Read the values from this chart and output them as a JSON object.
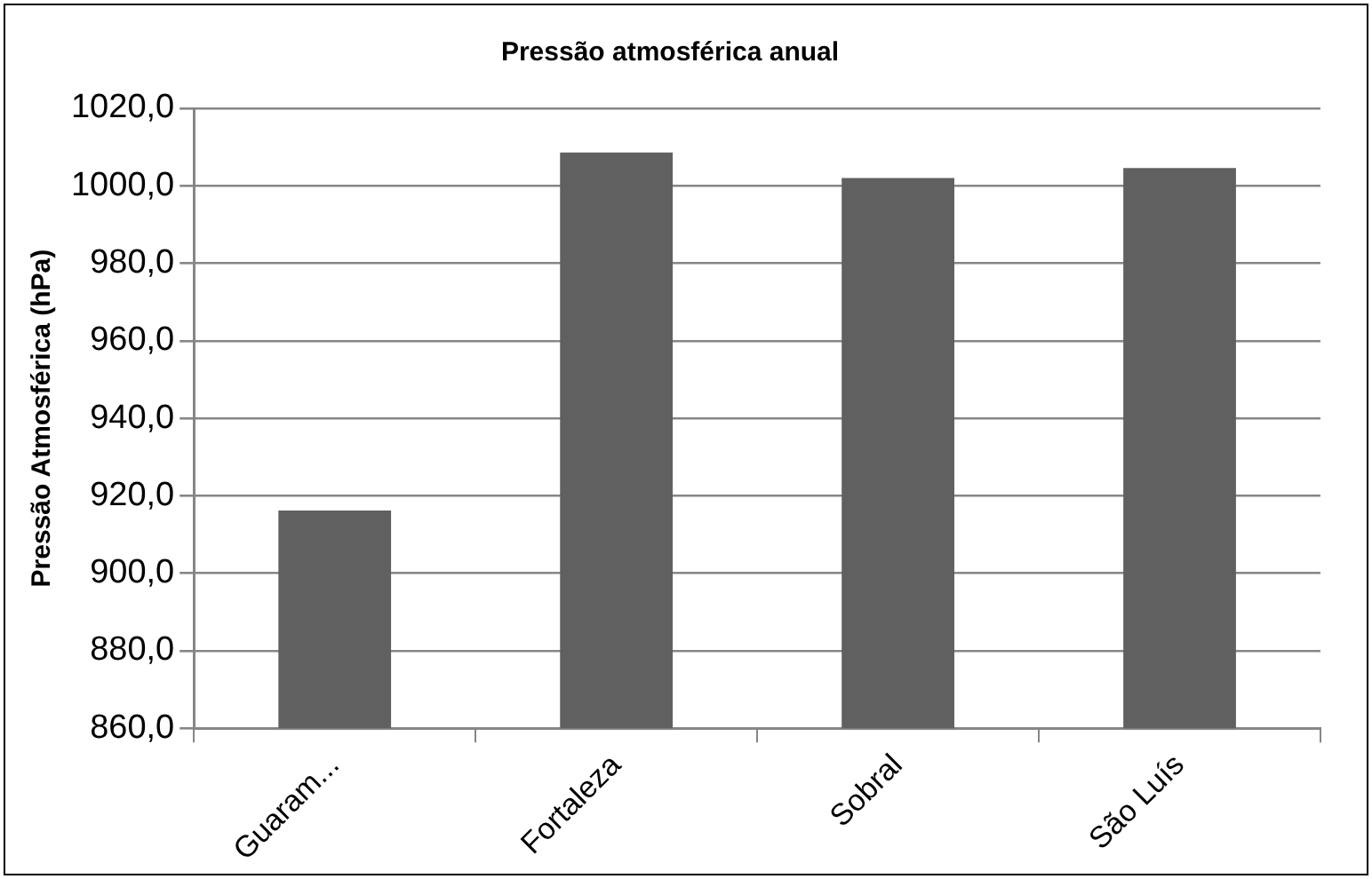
{
  "chart_data": {
    "type": "bar",
    "title": "Pressão atmosférica anual",
    "ylabel": "Pressão Atmosférica (hPa)",
    "categories": [
      "Guaram...",
      "Fortaleza",
      "Sobral",
      "São Luís"
    ],
    "values": [
      916.2,
      1008.6,
      1002.0,
      1004.6
    ],
    "color": "#606060",
    "ylim": [
      860,
      1020
    ],
    "yticks": [
      {
        "value": 860,
        "label": "860,0"
      },
      {
        "value": 880,
        "label": "880,0"
      },
      {
        "value": 900,
        "label": "900,0"
      },
      {
        "value": 920,
        "label": "920,0"
      },
      {
        "value": 940,
        "label": "940,0"
      },
      {
        "value": 960,
        "label": "960,0"
      },
      {
        "value": 980,
        "label": "980,0"
      },
      {
        "value": 1000,
        "label": "1000,0"
      },
      {
        "value": 1020,
        "label": "1020,0"
      }
    ],
    "grid": "y",
    "legend": false
  }
}
